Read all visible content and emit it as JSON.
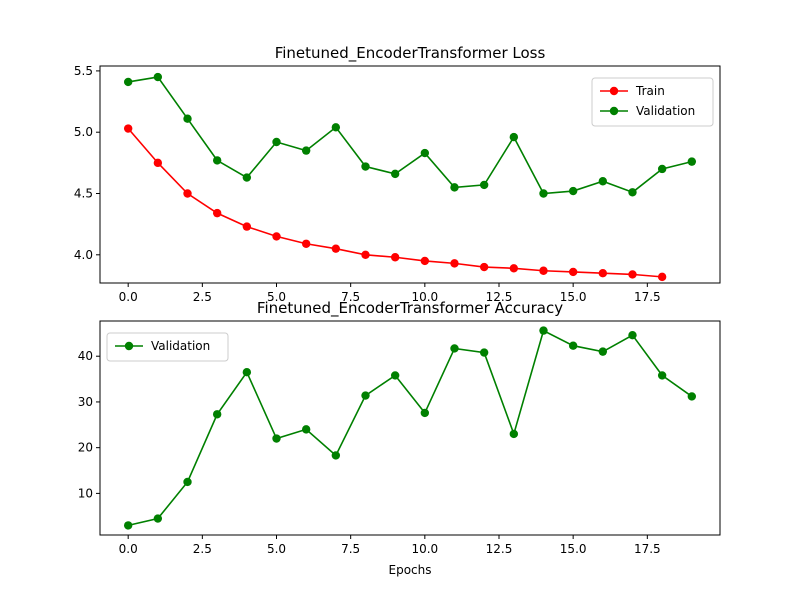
{
  "chart_data": [
    {
      "type": "line",
      "title": "Finetuned_EncoderTransformer Loss",
      "xlabel": "",
      "ylabel": "",
      "xlim": [
        -0.95,
        19.95
      ],
      "ylim": [
        3.77,
        5.54
      ],
      "xticks": [
        0.0,
        2.5,
        5.0,
        7.5,
        10.0,
        12.5,
        15.0,
        17.5
      ],
      "xtick_labels": [
        "0.0",
        "2.5",
        "5.0",
        "7.5",
        "10.0",
        "12.5",
        "15.0",
        "17.5"
      ],
      "yticks": [
        4.0,
        4.5,
        5.0,
        5.5
      ],
      "ytick_labels": [
        "4.0",
        "4.5",
        "5.0",
        "5.5"
      ],
      "grid": false,
      "legend_position": "top-right",
      "series": [
        {
          "name": "Train",
          "color": "#ff0000",
          "x": [
            0,
            1,
            2,
            3,
            4,
            5,
            6,
            7,
            8,
            9,
            10,
            11,
            12,
            13,
            14,
            15,
            16,
            17,
            18
          ],
          "values": [
            5.03,
            4.75,
            4.5,
            4.34,
            4.23,
            4.15,
            4.09,
            4.05,
            4.0,
            3.98,
            3.95,
            3.93,
            3.9,
            3.89,
            3.87,
            3.86,
            3.85,
            3.84,
            3.82
          ]
        },
        {
          "name": "Validation",
          "color": "#008000",
          "x": [
            0,
            1,
            2,
            3,
            4,
            5,
            6,
            7,
            8,
            9,
            10,
            11,
            12,
            13,
            14,
            15,
            16,
            17,
            18,
            19
          ],
          "values": [
            5.41,
            5.45,
            5.11,
            4.77,
            4.63,
            4.92,
            4.85,
            5.04,
            4.72,
            4.66,
            4.83,
            4.55,
            4.57,
            4.96,
            4.5,
            4.52,
            4.6,
            4.51,
            4.7,
            4.76
          ]
        }
      ]
    },
    {
      "type": "line",
      "title": "Finetuned_EncoderTransformer Accuracy",
      "xlabel": "Epochs",
      "ylabel": "",
      "xlim": [
        -0.95,
        19.95
      ],
      "ylim": [
        0.9,
        47.7
      ],
      "xticks": [
        0.0,
        2.5,
        5.0,
        7.5,
        10.0,
        12.5,
        15.0,
        17.5
      ],
      "xtick_labels": [
        "0.0",
        "2.5",
        "5.0",
        "7.5",
        "10.0",
        "12.5",
        "15.0",
        "17.5"
      ],
      "yticks": [
        10,
        20,
        30,
        40
      ],
      "ytick_labels": [
        "10",
        "20",
        "30",
        "40"
      ],
      "grid": false,
      "legend_position": "top-left",
      "series": [
        {
          "name": "Validation",
          "color": "#008000",
          "x": [
            0,
            1,
            2,
            3,
            4,
            5,
            6,
            7,
            8,
            9,
            10,
            11,
            12,
            13,
            14,
            15,
            16,
            17,
            18,
            19
          ],
          "values": [
            3.0,
            4.5,
            12.5,
            27.3,
            36.5,
            22.0,
            24.0,
            18.3,
            31.4,
            35.8,
            27.6,
            41.7,
            40.8,
            23.0,
            45.6,
            42.3,
            41.0,
            44.6,
            35.8,
            31.2
          ]
        }
      ]
    }
  ]
}
